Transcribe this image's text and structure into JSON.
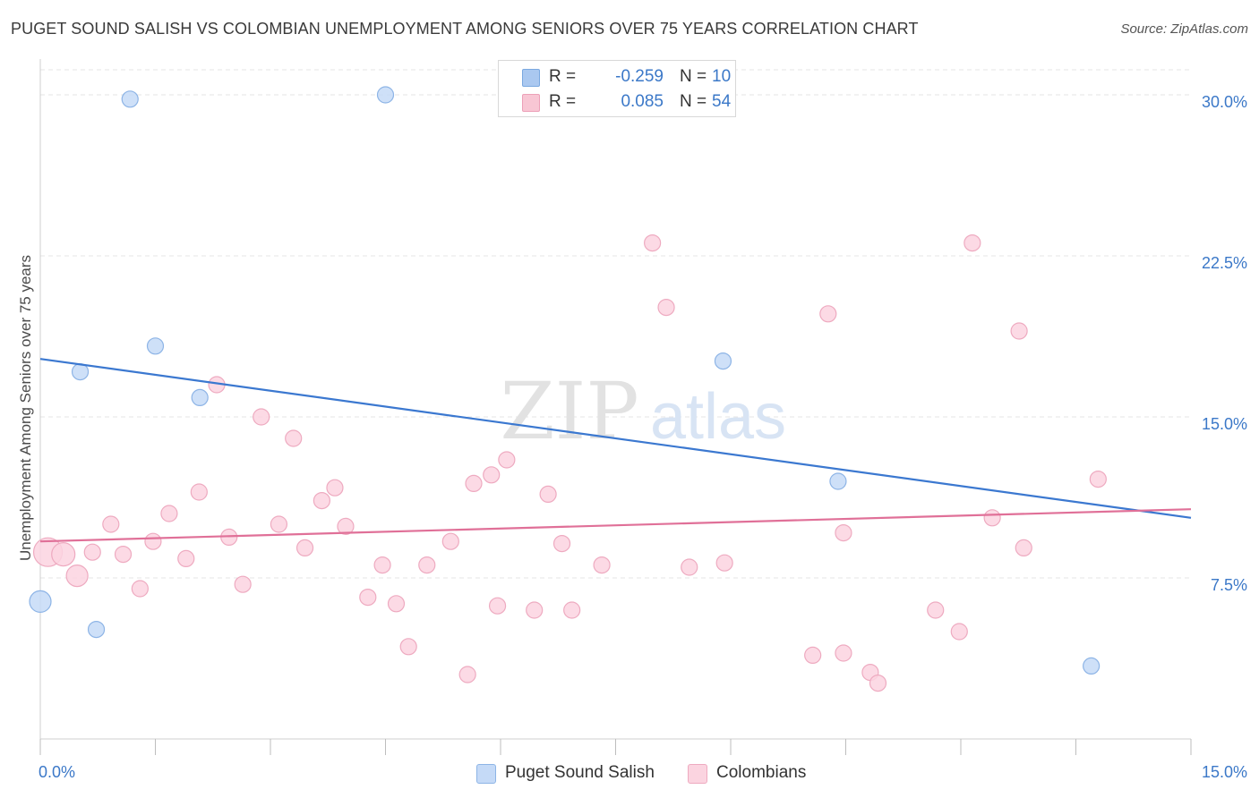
{
  "title": "PUGET SOUND SALISH VS COLOMBIAN UNEMPLOYMENT AMONG SENIORS OVER 75 YEARS CORRELATION CHART",
  "source": "Source: ZipAtlas.com",
  "watermark": {
    "zip": "ZIP",
    "atlas": "atlas"
  },
  "legend": [
    {
      "r_label": "R =",
      "r_value": "-0.259",
      "n_label": "N =",
      "n_value": "10",
      "color": "#aac8f0",
      "border": "#7aa8e0"
    },
    {
      "r_label": "R =",
      "r_value": "0.085",
      "n_label": "N =",
      "n_value": "54",
      "color": "#f8c6d4",
      "border": "#eca0b8"
    }
  ],
  "bottom_legend": [
    {
      "label": "Puget Sound Salish",
      "color": "#c5daf7",
      "border": "#8db4e6"
    },
    {
      "label": "Colombians",
      "color": "#fbd4e0",
      "border": "#eeaac0"
    }
  ],
  "chart_data": {
    "type": "scatter",
    "ylabel": "Unemployment Among Seniors over 75 years",
    "x_tick_labels": [
      "0.0%",
      "15.0%"
    ],
    "y_tick_labels": [
      "7.5%",
      "15.0%",
      "22.5%",
      "30.0%"
    ],
    "y_ticks": [
      7.5,
      15.0,
      22.5,
      30.0
    ],
    "xlim": [
      0,
      15
    ],
    "ylim": [
      0,
      31.5
    ],
    "grid": true,
    "series": [
      {
        "name": "Puget Sound Salish",
        "color": "#3b78d0",
        "fill": "#c5daf7",
        "stroke": "#8db4e6",
        "points": [
          [
            0.0,
            6.4,
            12
          ],
          [
            0.52,
            17.1,
            9
          ],
          [
            0.73,
            5.1,
            9
          ],
          [
            1.17,
            29.8,
            9
          ],
          [
            1.5,
            18.3,
            9
          ],
          [
            2.08,
            15.9,
            9
          ],
          [
            4.5,
            30.0,
            9
          ],
          [
            8.9,
            17.6,
            9
          ],
          [
            10.4,
            12.0,
            9
          ],
          [
            13.7,
            3.4,
            9
          ]
        ],
        "trend": [
          [
            0.0,
            17.7
          ],
          [
            15.0,
            10.3
          ]
        ]
      },
      {
        "name": "Colombians",
        "color": "#e07098",
        "fill": "#fbd4e0",
        "stroke": "#eeaac0",
        "points": [
          [
            0.1,
            8.7,
            16
          ],
          [
            0.3,
            8.6,
            13
          ],
          [
            0.48,
            7.6,
            12
          ],
          [
            0.68,
            8.7,
            9
          ],
          [
            0.92,
            10.0,
            9
          ],
          [
            1.08,
            8.6,
            9
          ],
          [
            1.3,
            7.0,
            9
          ],
          [
            1.47,
            9.2,
            9
          ],
          [
            1.68,
            10.5,
            9
          ],
          [
            1.9,
            8.4,
            9
          ],
          [
            2.07,
            11.5,
            9
          ],
          [
            2.3,
            16.5,
            9
          ],
          [
            2.46,
            9.4,
            9
          ],
          [
            2.64,
            7.2,
            9
          ],
          [
            2.88,
            15.0,
            9
          ],
          [
            3.11,
            10.0,
            9
          ],
          [
            3.3,
            14.0,
            9
          ],
          [
            3.45,
            8.9,
            9
          ],
          [
            3.67,
            11.1,
            9
          ],
          [
            3.84,
            11.7,
            9
          ],
          [
            3.98,
            9.9,
            9
          ],
          [
            4.27,
            6.6,
            9
          ],
          [
            4.46,
            8.1,
            9
          ],
          [
            4.64,
            6.3,
            9
          ],
          [
            4.8,
            4.3,
            9
          ],
          [
            5.04,
            8.1,
            9
          ],
          [
            5.35,
            9.2,
            9
          ],
          [
            5.57,
            3.0,
            9
          ],
          [
            5.65,
            11.9,
            9
          ],
          [
            5.88,
            12.3,
            9
          ],
          [
            5.96,
            6.2,
            9
          ],
          [
            6.08,
            13.0,
            9
          ],
          [
            6.44,
            6.0,
            9
          ],
          [
            6.62,
            11.4,
            9
          ],
          [
            6.8,
            9.1,
            9
          ],
          [
            6.93,
            6.0,
            9
          ],
          [
            7.32,
            8.1,
            9
          ],
          [
            7.98,
            23.1,
            9
          ],
          [
            8.16,
            20.1,
            9
          ],
          [
            8.46,
            8.0,
            9
          ],
          [
            8.92,
            8.2,
            9
          ],
          [
            10.07,
            3.9,
            9
          ],
          [
            10.27,
            19.8,
            9
          ],
          [
            10.47,
            4.0,
            9
          ],
          [
            10.47,
            9.6,
            9
          ],
          [
            10.82,
            3.1,
            9
          ],
          [
            10.92,
            2.6,
            9
          ],
          [
            11.67,
            6.0,
            9
          ],
          [
            11.98,
            5.0,
            9
          ],
          [
            12.15,
            23.1,
            9
          ],
          [
            12.41,
            10.3,
            9
          ],
          [
            12.76,
            19.0,
            9
          ],
          [
            12.82,
            8.9,
            9
          ],
          [
            13.79,
            12.1,
            9
          ]
        ],
        "trend": [
          [
            0.0,
            9.2
          ],
          [
            15.0,
            10.7
          ]
        ]
      }
    ]
  }
}
